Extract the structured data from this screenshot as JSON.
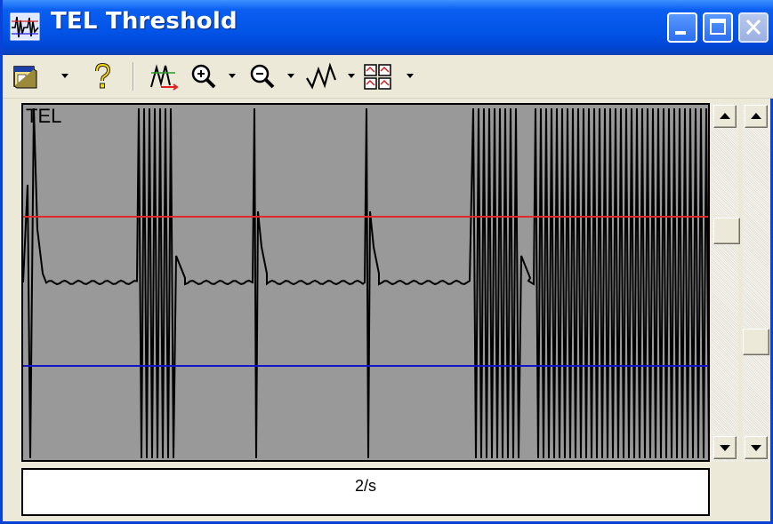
{
  "window": {
    "title": "TEL Threshold"
  },
  "colors": {
    "trace": "#000000",
    "upper_threshold": "#e02a2a",
    "lower_threshold": "#1414c8",
    "plot_background": "#999999"
  },
  "toolbar": {
    "items": [
      {
        "icon": "window-icon",
        "has_dropdown": true
      },
      {
        "icon": "help-icon",
        "has_dropdown": false
      },
      {
        "icon": "auto-scale-icon",
        "has_dropdown": false
      },
      {
        "icon": "zoom-in-icon",
        "has_dropdown": true
      },
      {
        "icon": "zoom-out-icon",
        "has_dropdown": true
      },
      {
        "icon": "waveform-icon",
        "has_dropdown": true
      },
      {
        "icon": "grid-layout-icon",
        "has_dropdown": true
      }
    ]
  },
  "plot": {
    "channel_label": "TEL"
  },
  "status": {
    "rate": "2/s"
  }
}
